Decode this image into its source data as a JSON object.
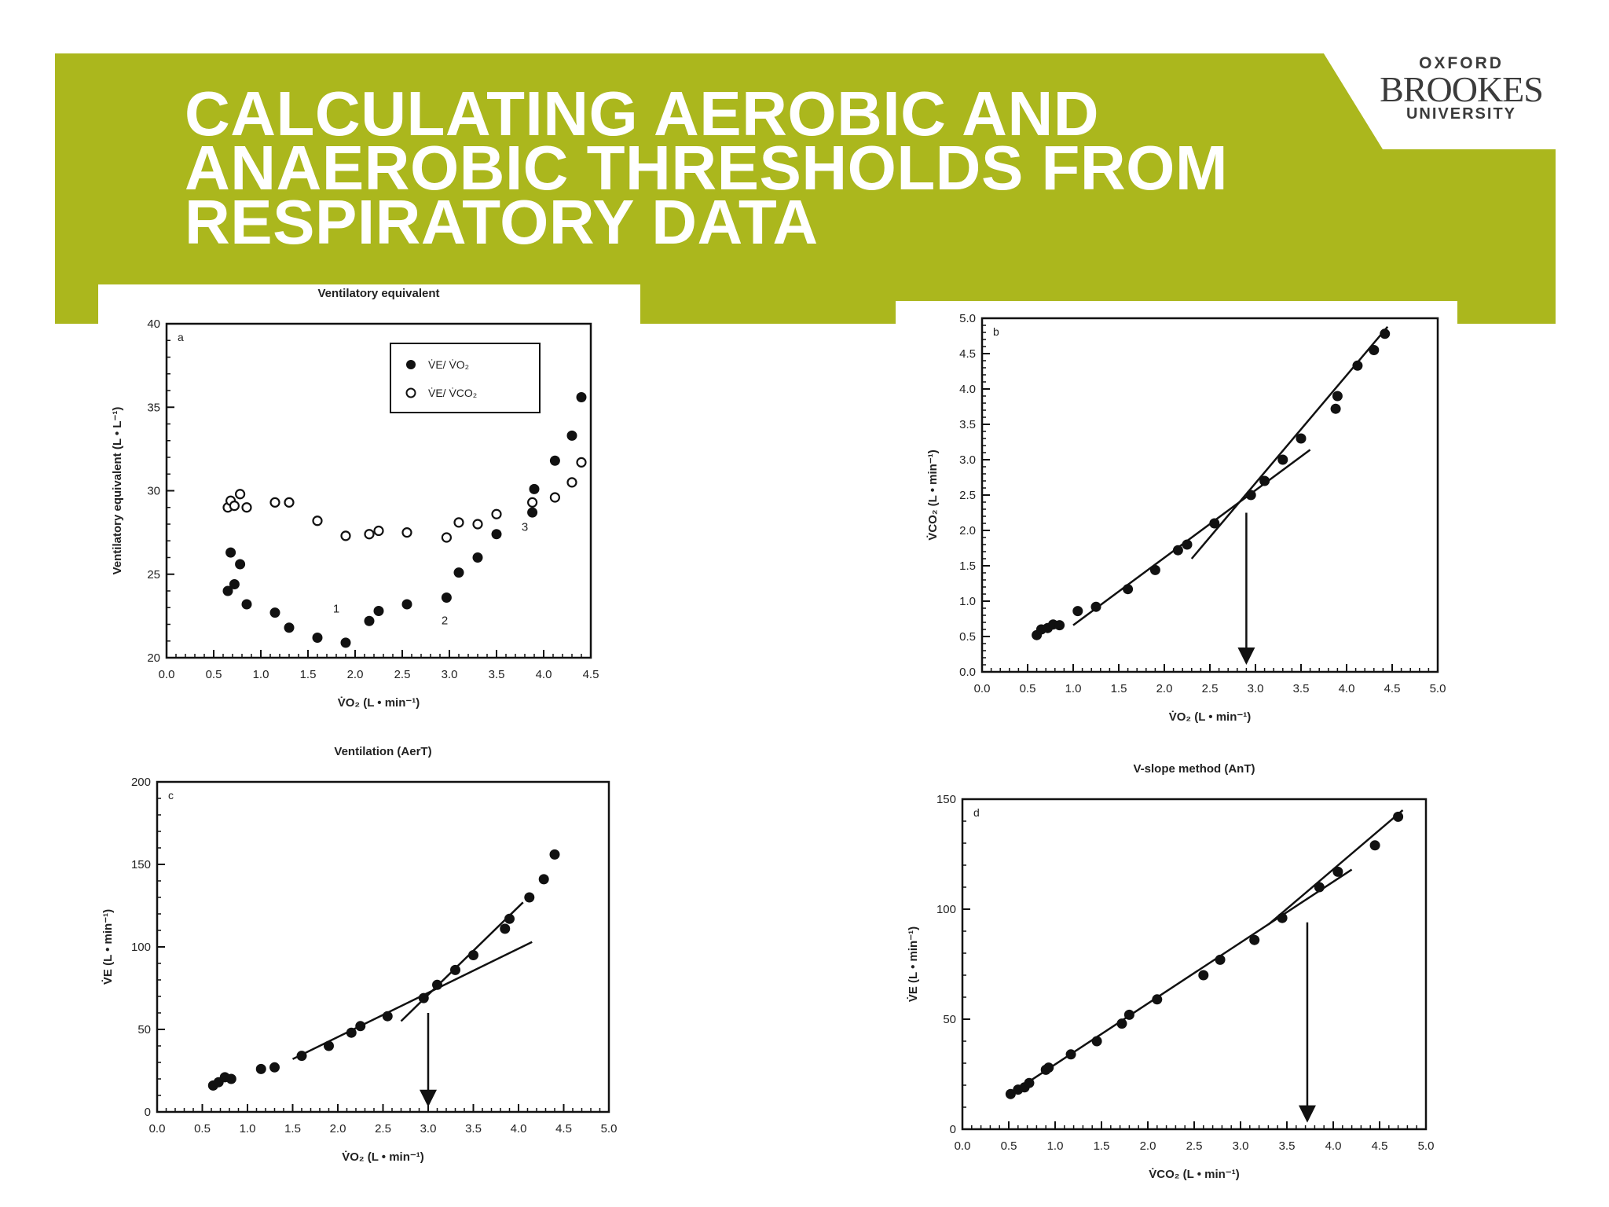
{
  "header": {
    "title_lines": [
      "CALCULATING AEROBIC AND",
      "ANAEROBIC THRESHOLDS FROM",
      "RESPIRATORY DATA"
    ],
    "banner_color": "#abb71d",
    "title_color": "#ffffff"
  },
  "logo": {
    "line1": "OXFORD",
    "line2": "BROOKES",
    "line3": "UNIVERSITY"
  },
  "chart_data": [
    {
      "type": "scatter",
      "title": "Ventilatory equivalent",
      "panel_label": "a",
      "xlabel": "V̇O₂ (L • min⁻¹)",
      "ylabel": "Ventilatory equivalent (L • L⁻¹)",
      "xlim": [
        0,
        4.5
      ],
      "ylim": [
        20,
        40
      ],
      "xticks": [
        "0.0",
        "0.5",
        "1.0",
        "1.5",
        "2.0",
        "2.5",
        "3.0",
        "3.5",
        "4.0",
        "4.5"
      ],
      "yticks": [
        "20",
        "25",
        "30",
        "35",
        "40"
      ],
      "legend": {
        "placement": "top-right",
        "entries": [
          "V̇E/ V̇O₂",
          "V̇E/ V̇CO₂"
        ]
      },
      "series": [
        {
          "name": "V̇E/ V̇O₂",
          "marker": "filled",
          "points": [
            [
              0.65,
              24.0
            ],
            [
              0.68,
              26.3
            ],
            [
              0.72,
              24.4
            ],
            [
              0.78,
              25.6
            ],
            [
              0.85,
              23.2
            ],
            [
              1.15,
              22.7
            ],
            [
              1.3,
              21.8
            ],
            [
              1.6,
              21.2
            ],
            [
              1.9,
              20.9
            ],
            [
              2.15,
              22.2
            ],
            [
              2.25,
              22.8
            ],
            [
              2.55,
              23.2
            ],
            [
              2.97,
              23.6
            ],
            [
              3.1,
              25.1
            ],
            [
              3.3,
              26.0
            ],
            [
              3.5,
              27.4
            ],
            [
              3.88,
              28.7
            ],
            [
              3.9,
              30.1
            ],
            [
              4.12,
              31.8
            ],
            [
              4.3,
              33.3
            ],
            [
              4.4,
              35.6
            ]
          ]
        },
        {
          "name": "V̇E/ V̇CO₂",
          "marker": "open",
          "points": [
            [
              0.65,
              29.0
            ],
            [
              0.68,
              29.4
            ],
            [
              0.72,
              29.1
            ],
            [
              0.78,
              29.8
            ],
            [
              0.85,
              29.0
            ],
            [
              1.15,
              29.3
            ],
            [
              1.3,
              29.3
            ],
            [
              1.6,
              28.2
            ],
            [
              1.9,
              27.3
            ],
            [
              2.15,
              27.4
            ],
            [
              2.25,
              27.6
            ],
            [
              2.55,
              27.5
            ],
            [
              2.97,
              27.2
            ],
            [
              3.1,
              28.1
            ],
            [
              3.3,
              28.0
            ],
            [
              3.5,
              28.6
            ],
            [
              3.88,
              29.3
            ],
            [
              4.12,
              29.6
            ],
            [
              4.3,
              30.5
            ],
            [
              4.4,
              31.7
            ]
          ]
        }
      ],
      "annotations": [
        {
          "text": "1",
          "x": 1.8,
          "y": 22.7
        },
        {
          "text": "2",
          "x": 2.95,
          "y": 22.0
        },
        {
          "text": "3",
          "x": 3.8,
          "y": 27.6
        }
      ]
    },
    {
      "type": "scatter",
      "title": "",
      "panel_label": "b",
      "xlabel": "V̇O₂ (L • min⁻¹)",
      "ylabel": "V̇CO₂ (L • min⁻¹)",
      "xlim": [
        0,
        5
      ],
      "ylim": [
        0,
        5
      ],
      "xticks": [
        "0.0",
        "0.5",
        "1.0",
        "1.5",
        "2.0",
        "2.5",
        "3.0",
        "3.5",
        "4.0",
        "4.5",
        "5.0"
      ],
      "yticks": [
        "0.0",
        "0.5",
        "1.0",
        "1.5",
        "2.0",
        "2.5",
        "3.0",
        "3.5",
        "4.0",
        "4.5",
        "5.0"
      ],
      "points": [
        [
          0.6,
          0.52
        ],
        [
          0.65,
          0.6
        ],
        [
          0.72,
          0.62
        ],
        [
          0.78,
          0.67
        ],
        [
          0.85,
          0.66
        ],
        [
          1.05,
          0.86
        ],
        [
          1.25,
          0.92
        ],
        [
          1.6,
          1.17
        ],
        [
          1.9,
          1.44
        ],
        [
          2.15,
          1.72
        ],
        [
          2.25,
          1.8
        ],
        [
          2.55,
          2.1
        ],
        [
          2.95,
          2.5
        ],
        [
          3.1,
          2.7
        ],
        [
          3.3,
          3.0
        ],
        [
          3.5,
          3.3
        ],
        [
          3.88,
          3.72
        ],
        [
          3.9,
          3.9
        ],
        [
          4.12,
          4.33
        ],
        [
          4.3,
          4.55
        ],
        [
          4.42,
          4.78
        ]
      ],
      "fit_lines": [
        {
          "from": [
            1.0,
            0.66
          ],
          "to": [
            3.6,
            3.14
          ]
        },
        {
          "from": [
            2.3,
            1.6
          ],
          "to": [
            4.45,
            4.88
          ]
        }
      ],
      "arrow": {
        "x": 2.9,
        "from_y": 2.25,
        "to_y": 0.1
      }
    },
    {
      "type": "scatter",
      "title": "Ventilation (AerT)",
      "panel_label": "c",
      "xlabel": "V̇O₂ (L • min⁻¹)",
      "ylabel": "V̇E (L • min⁻¹)",
      "xlim": [
        0,
        5
      ],
      "ylim": [
        0,
        200
      ],
      "xticks": [
        "0.0",
        "0.5",
        "1.0",
        "1.5",
        "2.0",
        "2.5",
        "3.0",
        "3.5",
        "4.0",
        "4.5",
        "5.0"
      ],
      "yticks": [
        "0",
        "50",
        "100",
        "150",
        "200"
      ],
      "points": [
        [
          0.62,
          16
        ],
        [
          0.68,
          18
        ],
        [
          0.75,
          21
        ],
        [
          0.82,
          20
        ],
        [
          1.15,
          26
        ],
        [
          1.3,
          27
        ],
        [
          1.6,
          34
        ],
        [
          1.9,
          40
        ],
        [
          2.15,
          48
        ],
        [
          2.25,
          52
        ],
        [
          2.55,
          58
        ],
        [
          2.95,
          69
        ],
        [
          3.1,
          77
        ],
        [
          3.3,
          86
        ],
        [
          3.5,
          95
        ],
        [
          3.85,
          111
        ],
        [
          3.9,
          117
        ],
        [
          4.12,
          130
        ],
        [
          4.28,
          141
        ],
        [
          4.4,
          156
        ]
      ],
      "fit_lines": [
        {
          "from": [
            1.5,
            32
          ],
          "to": [
            4.15,
            103
          ]
        },
        {
          "from": [
            2.7,
            55
          ],
          "to": [
            4.05,
            127
          ]
        }
      ],
      "arrow": {
        "x": 3.0,
        "from_y": 60,
        "to_y": 3
      }
    },
    {
      "type": "scatter",
      "title": "V-slope method (AnT)",
      "panel_label": "d",
      "xlabel": "V̇CO₂ (L • min⁻¹)",
      "ylabel": "V̇E (L • min⁻¹)",
      "xlim": [
        0,
        5
      ],
      "ylim": [
        0,
        150
      ],
      "xticks": [
        "0.0",
        "0.5",
        "1.0",
        "1.5",
        "2.0",
        "2.5",
        "3.0",
        "3.5",
        "4.0",
        "4.5",
        "5.0"
      ],
      "yticks": [
        "0",
        "50",
        "100",
        "150"
      ],
      "points": [
        [
          0.52,
          16
        ],
        [
          0.6,
          18
        ],
        [
          0.67,
          19
        ],
        [
          0.72,
          21
        ],
        [
          0.9,
          27
        ],
        [
          0.93,
          28
        ],
        [
          1.17,
          34
        ],
        [
          1.45,
          40
        ],
        [
          1.72,
          48
        ],
        [
          1.8,
          52
        ],
        [
          2.1,
          59
        ],
        [
          2.6,
          70
        ],
        [
          2.78,
          77
        ],
        [
          3.15,
          86
        ],
        [
          3.45,
          96
        ],
        [
          3.85,
          110
        ],
        [
          4.05,
          117
        ],
        [
          4.45,
          129
        ],
        [
          4.7,
          142
        ]
      ],
      "fit_lines": [
        {
          "from": [
            0.55,
            17
          ],
          "to": [
            4.2,
            118
          ]
        },
        {
          "from": [
            3.3,
            93
          ],
          "to": [
            4.75,
            145
          ]
        }
      ],
      "arrow": {
        "x": 3.72,
        "from_y": 94,
        "to_y": 3
      }
    }
  ]
}
